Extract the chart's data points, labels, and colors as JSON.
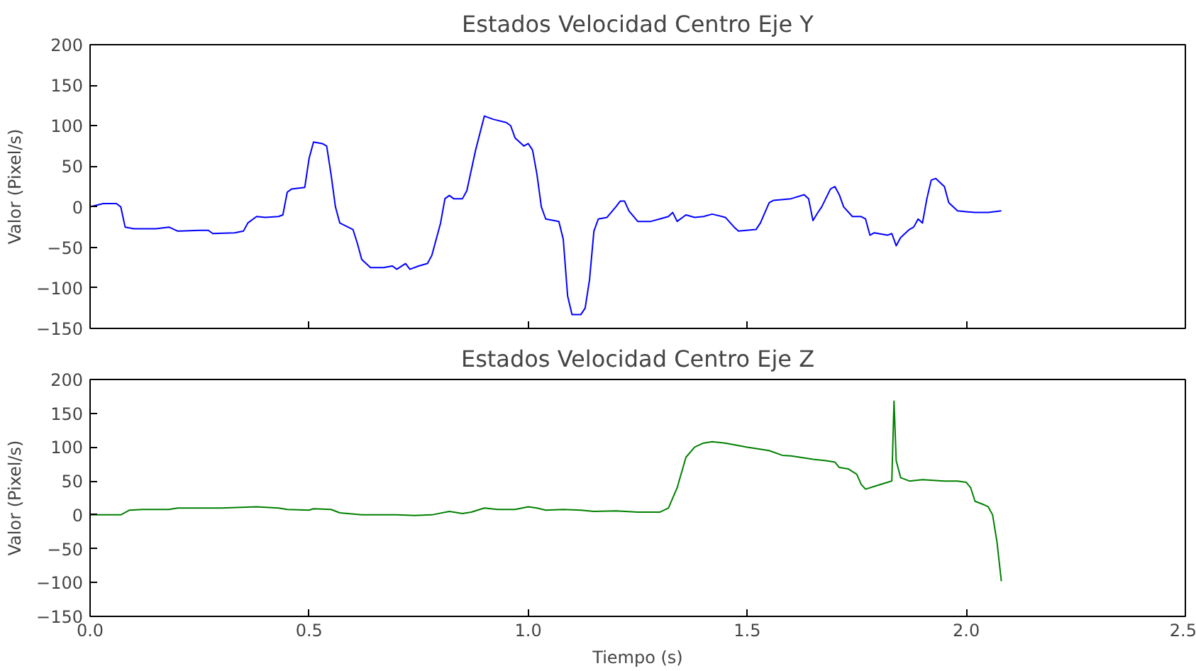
{
  "chart_data": [
    {
      "type": "line",
      "title": "Estados Velocidad Centro Eje Y",
      "ylabel": "Valor (Pixel/s)",
      "tick_labels": "y",
      "grid": false,
      "xlim": [
        0,
        2.5
      ],
      "xticks": [
        {
          "value": 0,
          "label": null
        },
        {
          "value": 0.5,
          "label": null
        },
        {
          "value": 1,
          "label": null
        },
        {
          "value": 1.5,
          "label": null
        },
        {
          "value": 2,
          "label": null
        },
        {
          "value": 2.5,
          "label": null
        }
      ],
      "ylim": [
        -150,
        200
      ],
      "yticks": [
        -150,
        -100,
        -50,
        0,
        50,
        100,
        150,
        200
      ],
      "series": [
        {
          "color": "#0000ff",
          "x": [
            0,
            0.03,
            0.06,
            0.07,
            0.08,
            0.1,
            0.15,
            0.18,
            0.2,
            0.25,
            0.27,
            0.28,
            0.33,
            0.35,
            0.36,
            0.38,
            0.4,
            0.43,
            0.44,
            0.45,
            0.46,
            0.49,
            0.5,
            0.51,
            0.53,
            0.54,
            0.55,
            0.56,
            0.57,
            0.6,
            0.61,
            0.62,
            0.64,
            0.67,
            0.69,
            0.7,
            0.72,
            0.73,
            0.75,
            0.77,
            0.78,
            0.8,
            0.81,
            0.82,
            0.83,
            0.85,
            0.86,
            0.88,
            0.9,
            0.92,
            0.95,
            0.96,
            0.97,
            0.99,
            1.0,
            1.01,
            1.02,
            1.03,
            1.04,
            1.07,
            1.08,
            1.09,
            1.1,
            1.12,
            1.13,
            1.14,
            1.15,
            1.16,
            1.18,
            1.2,
            1.21,
            1.22,
            1.23,
            1.25,
            1.28,
            1.3,
            1.32,
            1.33,
            1.34,
            1.36,
            1.38,
            1.4,
            1.42,
            1.45,
            1.47,
            1.48,
            1.52,
            1.53,
            1.55,
            1.56,
            1.6,
            1.63,
            1.64,
            1.65,
            1.66,
            1.67,
            1.69,
            1.7,
            1.71,
            1.72,
            1.74,
            1.76,
            1.77,
            1.78,
            1.79,
            1.82,
            1.83,
            1.84,
            1.85,
            1.87,
            1.88,
            1.89,
            1.9,
            1.91,
            1.92,
            1.93,
            1.95,
            1.96,
            1.98,
            2.0,
            2.02,
            2.05,
            2.08
          ],
          "values": [
            0,
            4,
            4,
            0,
            -25,
            -27,
            -27,
            -25,
            -30,
            -29,
            -29,
            -33,
            -32,
            -30,
            -20,
            -12,
            -13,
            -12,
            -10,
            18,
            22,
            24,
            60,
            80,
            78,
            75,
            40,
            0,
            -20,
            -28,
            -45,
            -65,
            -75,
            -75,
            -73,
            -77,
            -70,
            -77,
            -73,
            -70,
            -60,
            -20,
            10,
            14,
            10,
            10,
            20,
            70,
            112,
            108,
            104,
            100,
            85,
            75,
            78,
            70,
            40,
            0,
            -15,
            -18,
            -40,
            -110,
            -133,
            -133,
            -125,
            -90,
            -30,
            -15,
            -13,
            0,
            7,
            7,
            -5,
            -18,
            -18,
            -15,
            -12,
            -7,
            -18,
            -10,
            -13,
            -12,
            -9,
            -13,
            -25,
            -30,
            -28,
            -20,
            5,
            8,
            10,
            15,
            10,
            -17,
            -8,
            0,
            22,
            25,
            15,
            0,
            -12,
            -12,
            -15,
            -35,
            -32,
            -35,
            -33,
            -48,
            -38,
            -28,
            -25,
            -15,
            -20,
            10,
            33,
            35,
            25,
            5,
            -5,
            -6,
            -7,
            -7,
            -5
          ]
        }
      ]
    },
    {
      "type": "line",
      "title": "Estados Velocidad Centro Eje Z",
      "xlabel": "Tiempo (s)",
      "ylabel": "Valor (Pixel/s)",
      "grid": false,
      "xlim": [
        0,
        2.5
      ],
      "xticks": [
        {
          "value": 0,
          "label": "0.0"
        },
        {
          "value": 0.5,
          "label": "0.5"
        },
        {
          "value": 1,
          "label": "1.0"
        },
        {
          "value": 1.5,
          "label": "1.5"
        },
        {
          "value": 2,
          "label": "2.0"
        },
        {
          "value": 2.5,
          "label": "2.5"
        }
      ],
      "ylim": [
        -150,
        200
      ],
      "yticks": [
        -150,
        -100,
        -50,
        0,
        50,
        100,
        150,
        200
      ],
      "series": [
        {
          "color": "#008000",
          "x": [
            0,
            0.07,
            0.09,
            0.12,
            0.18,
            0.2,
            0.3,
            0.38,
            0.43,
            0.45,
            0.5,
            0.51,
            0.55,
            0.57,
            0.62,
            0.7,
            0.74,
            0.78,
            0.82,
            0.85,
            0.87,
            0.9,
            0.93,
            0.97,
            1.0,
            1.02,
            1.04,
            1.08,
            1.12,
            1.15,
            1.2,
            1.25,
            1.3,
            1.32,
            1.34,
            1.36,
            1.38,
            1.4,
            1.42,
            1.45,
            1.5,
            1.55,
            1.58,
            1.6,
            1.65,
            1.68,
            1.7,
            1.71,
            1.73,
            1.75,
            1.76,
            1.77,
            1.79,
            1.82,
            1.83,
            1.835,
            1.84,
            1.85,
            1.87,
            1.9,
            1.95,
            1.98,
            2.0,
            2.01,
            2.02,
            2.04,
            2.05,
            2.06,
            2.07,
            2.08
          ],
          "values": [
            0,
            0,
            7,
            8,
            8,
            10,
            10,
            12,
            10,
            8,
            7,
            9,
            8,
            3,
            0,
            0,
            -1,
            0,
            5,
            2,
            4,
            10,
            8,
            8,
            12,
            10,
            7,
            8,
            7,
            5,
            6,
            4,
            4,
            10,
            40,
            85,
            100,
            106,
            108,
            106,
            100,
            95,
            88,
            87,
            82,
            80,
            78,
            70,
            68,
            60,
            45,
            38,
            42,
            48,
            50,
            168,
            80,
            55,
            50,
            52,
            50,
            50,
            48,
            40,
            20,
            15,
            12,
            0,
            -40,
            -98
          ]
        }
      ]
    }
  ]
}
